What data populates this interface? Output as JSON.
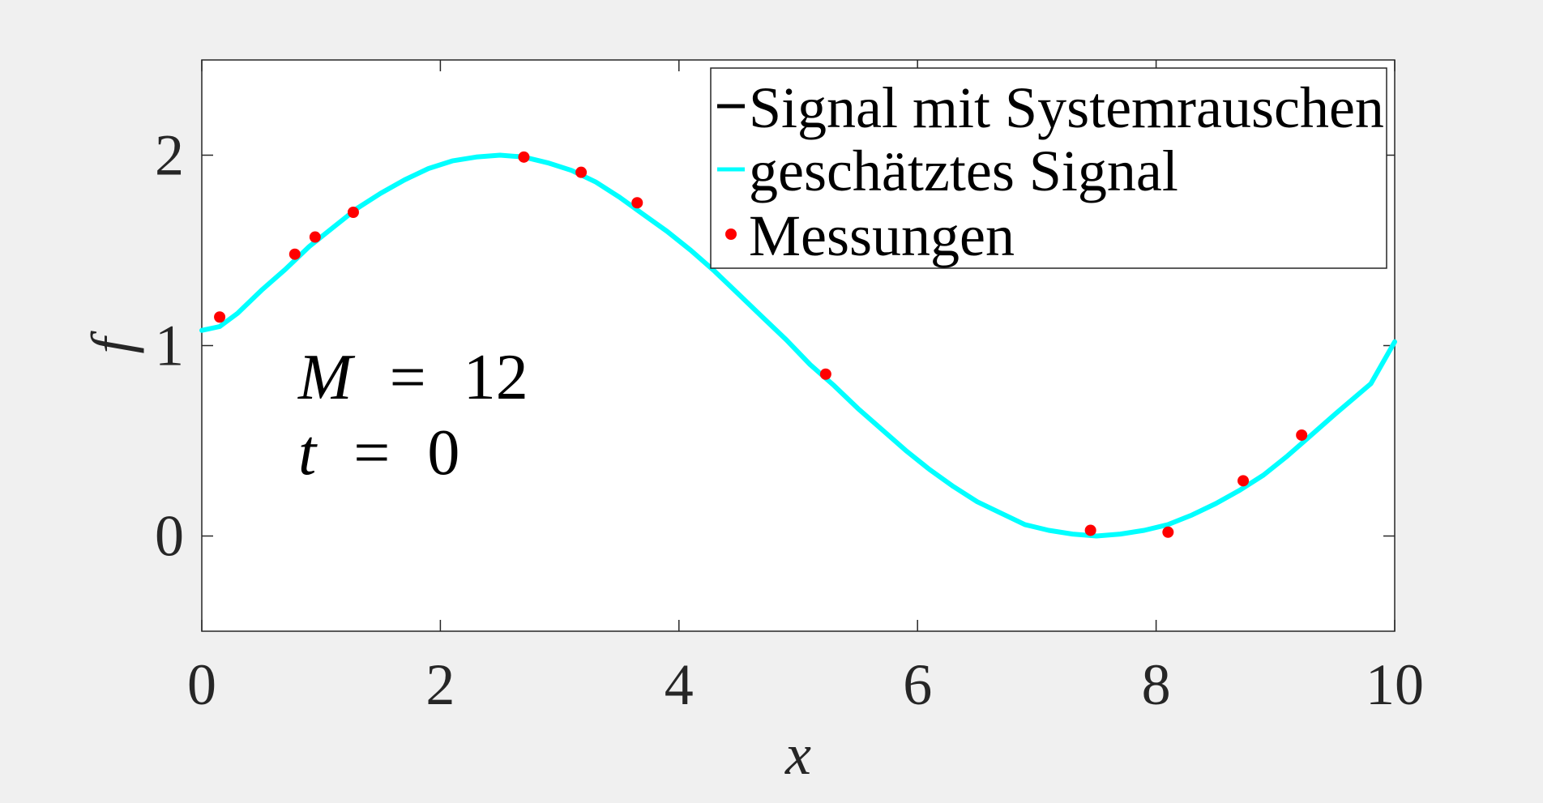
{
  "chart_data": {
    "type": "line",
    "xlabel": "x",
    "ylabel": "f",
    "xlim": [
      0,
      10
    ],
    "ylim": [
      -0.5,
      2.5
    ],
    "xticks": [
      0,
      2,
      4,
      6,
      8,
      10
    ],
    "xtick_labels": [
      "0",
      "2",
      "4",
      "6",
      "8",
      "10"
    ],
    "yticks": [
      0,
      1,
      2
    ],
    "ytick_labels": [
      "0",
      "1",
      "2"
    ],
    "grid": false,
    "legend_position": "top-right",
    "legend": [
      {
        "label": "Signal mit Systemrauschen",
        "color": "#000000",
        "marker": "line"
      },
      {
        "label": "geschätztes Signal",
        "color": "#00ffff",
        "marker": "line"
      },
      {
        "label": "Messungen",
        "color": "#ff0000",
        "marker": "dot"
      }
    ],
    "series": [
      {
        "name": "geschätztes Signal",
        "type": "line",
        "color": "#00ffff",
        "x": [
          0,
          0.15,
          0.3,
          0.5,
          0.7,
          0.9,
          1.1,
          1.3,
          1.5,
          1.7,
          1.9,
          2.1,
          2.3,
          2.5,
          2.7,
          2.9,
          3.1,
          3.3,
          3.5,
          3.7,
          3.9,
          4.1,
          4.3,
          4.5,
          4.7,
          4.9,
          5.1,
          5.3,
          5.5,
          5.7,
          5.9,
          6.1,
          6.3,
          6.5,
          6.7,
          6.9,
          7.1,
          7.3,
          7.5,
          7.7,
          7.9,
          8.1,
          8.3,
          8.5,
          8.7,
          8.9,
          9.1,
          9.3,
          9.5,
          9.65,
          9.8,
          9.9,
          10.0
        ],
        "y": [
          1.08,
          1.1,
          1.17,
          1.29,
          1.4,
          1.52,
          1.62,
          1.72,
          1.8,
          1.87,
          1.93,
          1.97,
          1.99,
          2.0,
          1.99,
          1.96,
          1.92,
          1.86,
          1.78,
          1.69,
          1.6,
          1.5,
          1.39,
          1.27,
          1.15,
          1.03,
          0.9,
          0.79,
          0.67,
          0.56,
          0.45,
          0.35,
          0.26,
          0.18,
          0.12,
          0.06,
          0.03,
          0.01,
          0.0,
          0.01,
          0.03,
          0.06,
          0.11,
          0.17,
          0.24,
          0.32,
          0.42,
          0.53,
          0.64,
          0.72,
          0.8,
          0.91,
          1.02
        ]
      },
      {
        "name": "Messungen",
        "type": "scatter",
        "color": "#ff0000",
        "x": [
          0.15,
          0.78,
          0.95,
          1.27,
          2.7,
          3.18,
          3.65,
          5.23,
          7.45,
          8.1,
          8.73,
          9.22
        ],
        "y": [
          1.15,
          1.48,
          1.57,
          1.7,
          1.99,
          1.91,
          1.75,
          0.85,
          0.03,
          0.02,
          0.29,
          0.53
        ]
      }
    ],
    "annotations": [
      {
        "var": "M",
        "eq": "=",
        "val": "12"
      },
      {
        "var": "t",
        "eq": "=",
        "val": "0"
      }
    ]
  }
}
